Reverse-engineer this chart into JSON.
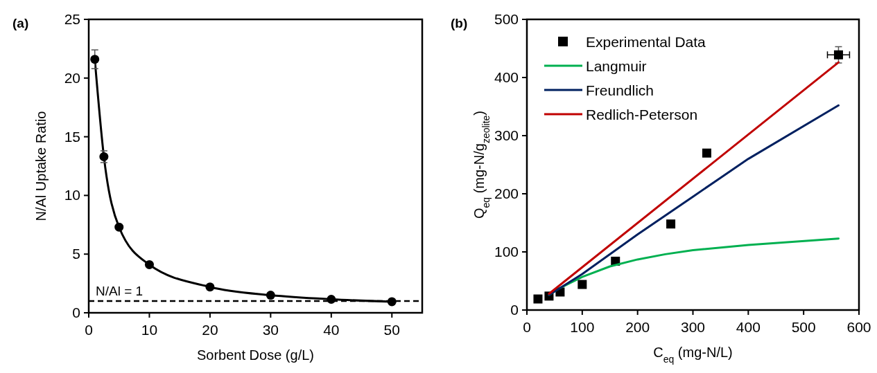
{
  "chart_data": [
    {
      "type": "line",
      "title": "(a)",
      "xlabel": "Sorbent Dose (g/L)",
      "ylabel": "N/Al Uptake Ratio",
      "xlim": [
        0,
        55
      ],
      "ylim": [
        0,
        25
      ],
      "xticks": [
        0,
        10,
        20,
        30,
        40,
        50
      ],
      "yticks": [
        0,
        5,
        10,
        15,
        20,
        25
      ],
      "grid": false,
      "legend": false,
      "marker": "circle",
      "line_style": "solid",
      "series": [
        {
          "color": "#000000",
          "x": [
            1,
            2.5,
            5,
            10,
            20,
            30,
            40,
            50
          ],
          "values": [
            21.6,
            13.3,
            7.3,
            4.1,
            2.2,
            1.5,
            1.15,
            0.95
          ],
          "errors": [
            0.8,
            0.5,
            null,
            null,
            null,
            null,
            null,
            null
          ]
        }
      ],
      "ref_lines": [
        {
          "axis": "y",
          "value": 1,
          "label": "N/Al = 1",
          "color": "#000000",
          "line_style": "dashed"
        }
      ]
    },
    {
      "type": "line",
      "title": "(b)",
      "xlabel": "C$_{eq}$ (mg-N/L)",
      "ylabel": "Q$_{eq}$ (mg-N/g$_{zeolite}$)",
      "xlim": [
        0,
        600
      ],
      "ylim": [
        0,
        500
      ],
      "xticks": [
        0,
        100,
        200,
        300,
        400,
        500,
        600
      ],
      "yticks": [
        0,
        100,
        200,
        300,
        400,
        500
      ],
      "grid": false,
      "legend": "top left",
      "series": [
        {
          "type": "scatter",
          "name": "Experimental Data",
          "color": "#000000",
          "marker": "square",
          "x": [
            20,
            40,
            60,
            100,
            160,
            260,
            325,
            563
          ],
          "values": [
            19,
            24,
            31,
            44,
            84,
            148,
            270,
            439
          ],
          "errors": [
            null,
            null,
            null,
            null,
            null,
            null,
            null,
            14
          ],
          "xerrors": [
            null,
            null,
            null,
            null,
            null,
            null,
            null,
            20
          ]
        },
        {
          "type": "line",
          "name": "Langmuir",
          "color": "#00b050",
          "marker": "none",
          "x": [
            40,
            60,
            100,
            150,
            200,
            250,
            300,
            400,
            563
          ],
          "values": [
            26,
            38,
            57,
            75,
            87,
            96,
            103,
            112,
            123
          ]
        },
        {
          "type": "line",
          "name": "Freundlich",
          "color": "#002060",
          "marker": "none",
          "x": [
            40,
            100,
            200,
            300,
            400,
            563
          ],
          "values": [
            26,
            62,
            130,
            195,
            260,
            352
          ]
        },
        {
          "type": "line",
          "name": "Redlich-Peterson",
          "color": "#c00000",
          "marker": "none",
          "x": [
            40,
            563
          ],
          "values": [
            28,
            426
          ]
        }
      ]
    }
  ]
}
